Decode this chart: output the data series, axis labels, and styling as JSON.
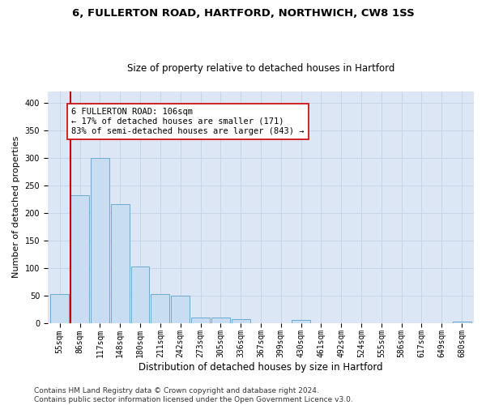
{
  "title_line1": "6, FULLERTON ROAD, HARTFORD, NORTHWICH, CW8 1SS",
  "title_line2": "Size of property relative to detached houses in Hartford",
  "xlabel": "Distribution of detached houses by size in Hartford",
  "ylabel": "Number of detached properties",
  "bar_labels": [
    "55sqm",
    "86sqm",
    "117sqm",
    "148sqm",
    "180sqm",
    "211sqm",
    "242sqm",
    "273sqm",
    "305sqm",
    "336sqm",
    "367sqm",
    "399sqm",
    "430sqm",
    "461sqm",
    "492sqm",
    "524sqm",
    "555sqm",
    "586sqm",
    "617sqm",
    "649sqm",
    "680sqm"
  ],
  "bar_values": [
    53,
    232,
    300,
    215,
    103,
    52,
    49,
    10,
    9,
    6,
    0,
    0,
    5,
    0,
    0,
    0,
    0,
    0,
    0,
    0,
    3
  ],
  "bar_color": "#c9ddf2",
  "bar_edge_color": "#6aaad4",
  "vline_color": "#cc0000",
  "annotation_text": "6 FULLERTON ROAD: 106sqm\n← 17% of detached houses are smaller (171)\n83% of semi-detached houses are larger (843) →",
  "annotation_box_color": "#ffffff",
  "annotation_box_edge": "#cc0000",
  "ylim": [
    0,
    420
  ],
  "yticks": [
    0,
    50,
    100,
    150,
    200,
    250,
    300,
    350,
    400
  ],
  "grid_color": "#c8d4e8",
  "bg_color": "#dce6f5",
  "footer_text": "Contains HM Land Registry data © Crown copyright and database right 2024.\nContains public sector information licensed under the Open Government Licence v3.0.",
  "title_fontsize": 9.5,
  "subtitle_fontsize": 8.5,
  "axis_label_fontsize": 8,
  "tick_fontsize": 7,
  "footer_fontsize": 6.5,
  "annot_fontsize": 7.5
}
